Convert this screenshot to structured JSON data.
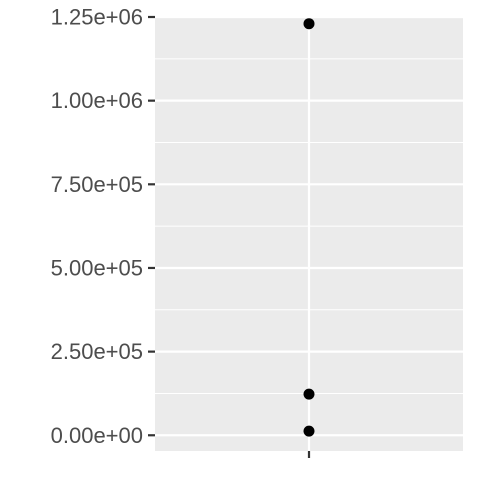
{
  "chart_data": {
    "type": "scatter",
    "title": "",
    "xlabel": "",
    "ylabel": "",
    "x": [
      1,
      1,
      1
    ],
    "y": [
      1230000,
      123000,
      12300
    ],
    "ylim": [
      -47000,
      1250000
    ],
    "yticks": [
      0,
      250000,
      500000,
      750000,
      1000000,
      1250000
    ],
    "ytick_labels": [
      "0.00e+00",
      "2.50e+05",
      "5.00e+05",
      "7.50e+05",
      "1.00e+06",
      "1.25e+06"
    ],
    "xticks": [
      1
    ],
    "xtick_labels": [
      ""
    ],
    "grid": true,
    "legend": "none"
  },
  "colors": {
    "panel": "#ebebeb",
    "grid": "#ffffff",
    "tick": "#333333",
    "point": "#000000"
  }
}
